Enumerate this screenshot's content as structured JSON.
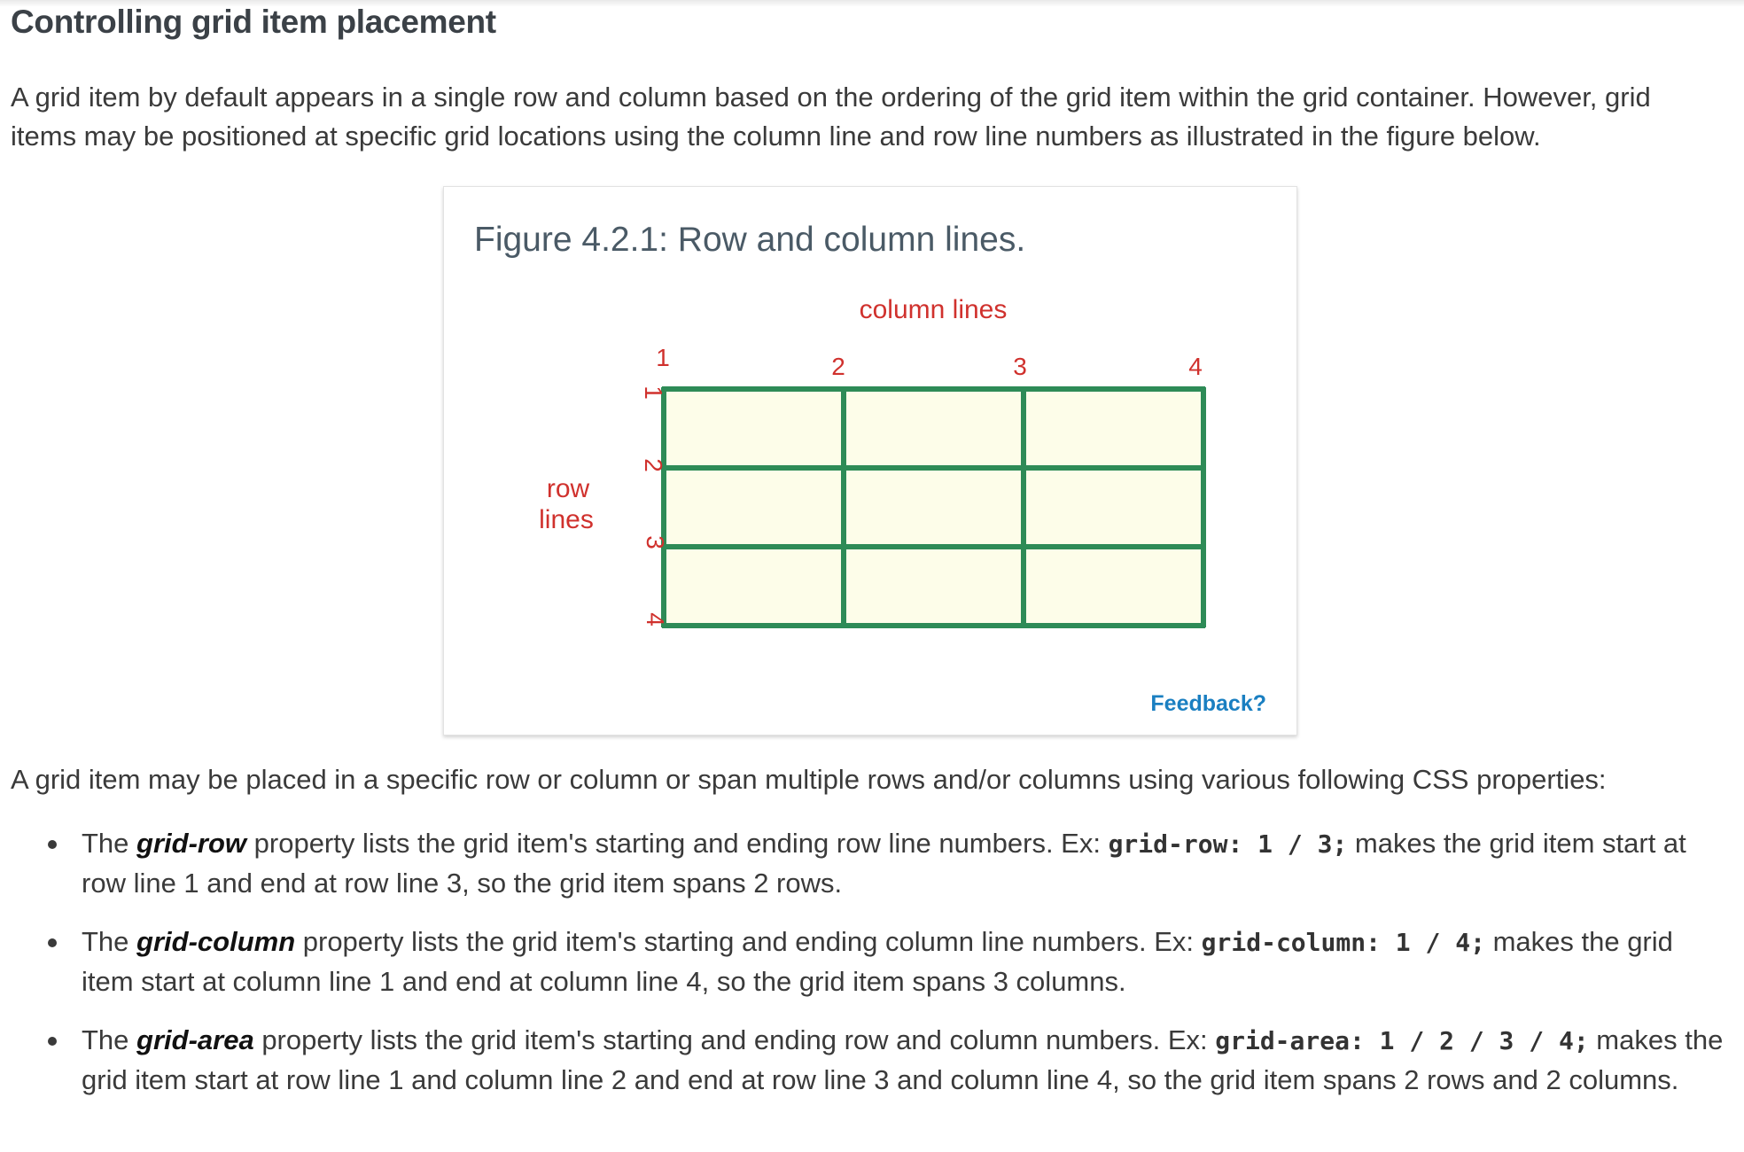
{
  "section": {
    "title": "Controlling grid item placement",
    "intro": "A grid item by default appears in a single row and column based on the ordering of the grid item within the grid container. However, grid items may be positioned at specific grid locations using the column line and row line numbers as illustrated in the figure below."
  },
  "figure": {
    "caption": "Figure 4.2.1: Row and column lines.",
    "column_lines_label": "column lines",
    "row_lines_label_line1": "row",
    "row_lines_label_line2": "lines",
    "column_numbers": [
      "1",
      "2",
      "3",
      "4"
    ],
    "row_numbers": [
      "1",
      "2",
      "3",
      "4"
    ],
    "feedback_label": "Feedback?",
    "colors": {
      "grid_line": "#2e8b57",
      "cell_fill": "#fdfde9",
      "label": "#d0312d"
    }
  },
  "after_figure": "A grid item may be placed in a specific row or column or span multiple rows and/or columns using various following CSS properties:",
  "bullets": [
    {
      "prefix": "The ",
      "property": "grid-row",
      "middle": " property lists the grid item's starting and ending row line numbers. Ex: ",
      "code": "grid-row: 1 / 3;",
      "suffix": " makes the grid item start at row line 1 and end at row line 3, so the grid item spans 2 rows."
    },
    {
      "prefix": "The ",
      "property": "grid-column",
      "middle": " property lists the grid item's starting and ending column line numbers. Ex: ",
      "code": "grid-column: 1 / 4;",
      "suffix": " makes the grid item start at column line 1 and end at column line 4, so the grid item spans 3 columns."
    },
    {
      "prefix": "The ",
      "property": "grid-area",
      "middle": " property lists the grid item's starting and ending row and column numbers. Ex: ",
      "code": "grid-area: 1 / 2 / 3 / 4;",
      "suffix": " makes the grid item start at row line 1 and column line 2 and end at row line 3 and column line 4, so the grid item spans 2 rows and 2 columns."
    }
  ]
}
